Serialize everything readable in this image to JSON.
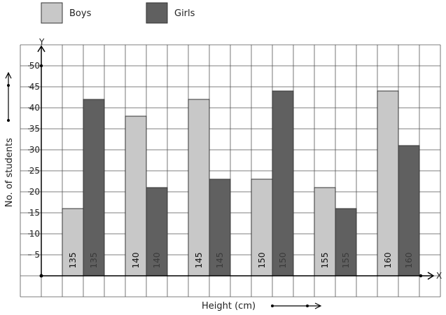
{
  "chart_data": {
    "type": "bar",
    "categories": [
      "135",
      "140",
      "145",
      "150",
      "155",
      "160"
    ],
    "series": [
      {
        "name": "Boys",
        "values": [
          16,
          38,
          42,
          23,
          21,
          44
        ],
        "color": "#c8c8c8"
      },
      {
        "name": "Girls",
        "values": [
          42,
          21,
          23,
          44,
          16,
          31
        ],
        "color": "#606060"
      }
    ],
    "xlabel": "Height (cm)",
    "ylabel": "No. of students",
    "ylim": [
      0,
      55
    ],
    "yticks": [
      5,
      10,
      15,
      20,
      25,
      30,
      35,
      40,
      45,
      50
    ],
    "ytick_labels": [
      "5",
      "10",
      "15",
      "20",
      "25",
      "30",
      "35",
      "40",
      "45",
      "50"
    ],
    "x_axis_letter": "X",
    "y_axis_letter": "Y",
    "grid": true,
    "legend_position": "top-left",
    "gridline_color": "#555555",
    "axis_color": "#000000"
  }
}
